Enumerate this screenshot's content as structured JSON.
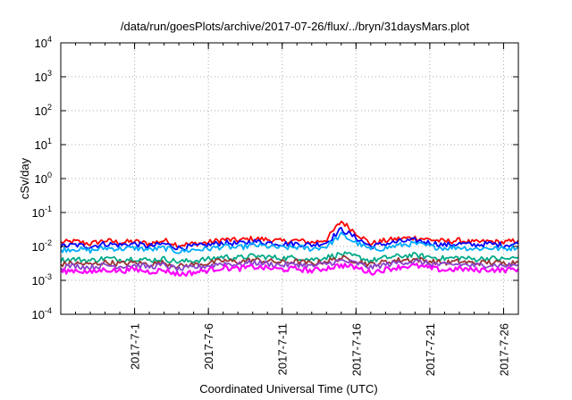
{
  "chart_data": {
    "type": "line",
    "title": "/data/run/goesPlots/archive/2017-07-26/flux/../bryn/31daysMars.plot",
    "xlabel": "Coordinated Universal Time (UTC)",
    "ylabel": "cSv/day",
    "yscale": "log",
    "ylim": [
      0.0001,
      10000
    ],
    "xlim": [
      "2017-06-26",
      "2017-07-27"
    ],
    "grid": true,
    "x_ticks": [
      "2017-7-1",
      "2017-7-6",
      "2017-7-11",
      "2017-7-16",
      "2017-7-21",
      "2017-7-26"
    ],
    "y_ticks": [
      {
        "base": "10",
        "exp": "-4",
        "value": 0.0001
      },
      {
        "base": "10",
        "exp": "-3",
        "value": 0.001
      },
      {
        "base": "10",
        "exp": "-2",
        "value": 0.01
      },
      {
        "base": "10",
        "exp": "-1",
        "value": 0.1
      },
      {
        "base": "10",
        "exp": "0",
        "value": 1
      },
      {
        "base": "10",
        "exp": "1",
        "value": 10
      },
      {
        "base": "10",
        "exp": "2",
        "value": 100
      },
      {
        "base": "10",
        "exp": "3",
        "value": 1000
      },
      {
        "base": "10",
        "exp": "4",
        "value": 10000
      }
    ],
    "x": [
      "2017-06-26",
      "2017-06-27",
      "2017-06-28",
      "2017-06-29",
      "2017-06-30",
      "2017-07-01",
      "2017-07-02",
      "2017-07-03",
      "2017-07-04",
      "2017-07-05",
      "2017-07-06",
      "2017-07-07",
      "2017-07-08",
      "2017-07-09",
      "2017-07-10",
      "2017-07-11",
      "2017-07-12",
      "2017-07-13",
      "2017-07-14",
      "2017-07-15",
      "2017-07-16",
      "2017-07-17",
      "2017-07-18",
      "2017-07-19",
      "2017-07-20",
      "2017-07-21",
      "2017-07-22",
      "2017-07-23",
      "2017-07-24",
      "2017-07-25",
      "2017-07-26",
      "2017-07-27"
    ],
    "series": [
      {
        "color": "#ff0000",
        "values": [
          0.013,
          0.014,
          0.012,
          0.015,
          0.013,
          0.014,
          0.012,
          0.015,
          0.011,
          0.012,
          0.013,
          0.016,
          0.015,
          0.017,
          0.016,
          0.014,
          0.015,
          0.013,
          0.016,
          0.055,
          0.025,
          0.012,
          0.015,
          0.017,
          0.018,
          0.016,
          0.014,
          0.015,
          0.013,
          0.014,
          0.013,
          0.015
        ]
      },
      {
        "color": "#0000ff",
        "values": [
          0.01,
          0.011,
          0.01,
          0.012,
          0.011,
          0.012,
          0.01,
          0.012,
          0.009,
          0.01,
          0.011,
          0.013,
          0.012,
          0.014,
          0.013,
          0.012,
          0.012,
          0.011,
          0.013,
          0.032,
          0.018,
          0.01,
          0.012,
          0.014,
          0.015,
          0.013,
          0.011,
          0.012,
          0.011,
          0.012,
          0.011,
          0.012
        ]
      },
      {
        "color": "#00aaff",
        "values": [
          0.008,
          0.0085,
          0.0075,
          0.009,
          0.0085,
          0.009,
          0.008,
          0.009,
          0.007,
          0.008,
          0.0085,
          0.01,
          0.009,
          0.011,
          0.01,
          0.009,
          0.0095,
          0.0085,
          0.01,
          0.022,
          0.013,
          0.008,
          0.009,
          0.011,
          0.012,
          0.01,
          0.009,
          0.0095,
          0.0085,
          0.009,
          0.0085,
          0.0095
        ]
      },
      {
        "color": "#00aa88",
        "values": [
          0.004,
          0.0042,
          0.0038,
          0.0045,
          0.0041,
          0.0044,
          0.0039,
          0.0043,
          0.0035,
          0.0038,
          0.0042,
          0.005,
          0.0046,
          0.0052,
          0.0049,
          0.0045,
          0.0047,
          0.0041,
          0.0048,
          0.006,
          0.005,
          0.0038,
          0.0046,
          0.0052,
          0.0055,
          0.0049,
          0.0044,
          0.0047,
          0.0042,
          0.0045,
          0.0042,
          0.0046
        ]
      },
      {
        "color": "#993333",
        "values": [
          0.003,
          0.0032,
          0.0029,
          0.0034,
          0.0031,
          0.0033,
          0.003,
          0.0033,
          0.0026,
          0.0029,
          0.0032,
          0.0038,
          0.0035,
          0.004,
          0.0037,
          0.0034,
          0.0036,
          0.0031,
          0.0037,
          0.0045,
          0.0038,
          0.0029,
          0.0035,
          0.004,
          0.0042,
          0.0037,
          0.0033,
          0.0036,
          0.0032,
          0.0034,
          0.0032,
          0.0035
        ]
      },
      {
        "color": "#8844cc",
        "values": [
          0.0025,
          0.0027,
          0.0024,
          0.0028,
          0.0026,
          0.0028,
          0.0025,
          0.0028,
          0.0021,
          0.0024,
          0.0027,
          0.0032,
          0.0029,
          0.0034,
          0.0031,
          0.0028,
          0.003,
          0.0026,
          0.0031,
          0.0038,
          0.0032,
          0.0024,
          0.0029,
          0.0034,
          0.0036,
          0.0031,
          0.0028,
          0.003,
          0.0027,
          0.0029,
          0.0027,
          0.0029
        ]
      },
      {
        "color": "#ff00ff",
        "values": [
          0.0018,
          0.002,
          0.0017,
          0.0021,
          0.0019,
          0.0021,
          0.0018,
          0.002,
          0.0015,
          0.0017,
          0.002,
          0.0024,
          0.0022,
          0.0025,
          0.0023,
          0.0021,
          0.0022,
          0.0019,
          0.0023,
          0.0028,
          0.0024,
          0.0017,
          0.0021,
          0.0025,
          0.0027,
          0.0023,
          0.002,
          0.0022,
          0.002,
          0.0021,
          0.002,
          0.0022
        ]
      }
    ]
  }
}
